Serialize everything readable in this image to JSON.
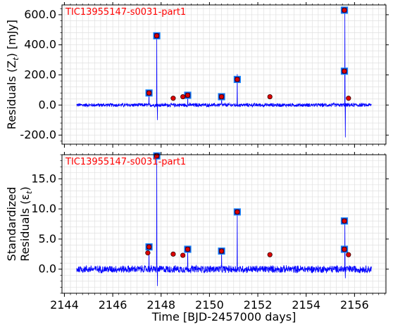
{
  "figure": {
    "xlabel": "Time [BJD-2457000 days]"
  },
  "colors": {
    "series": "#0000ff",
    "square_fill": "#2222aa",
    "square_edge": "#1a8cff",
    "dot_fill": "#dd0000",
    "dot_edge": "#330000",
    "title_text": "#ff0000",
    "grid": "#e0e0e0",
    "axes": "#000000"
  },
  "chart_data": [
    {
      "type": "line",
      "title": "TIC13955147-s0031-part1",
      "ylabel_lines": [
        "Residuals (Z",
        "t",
        ") [mJy]"
      ],
      "ylim": [
        -260,
        665
      ],
      "xlim": [
        2143.9,
        2157.3
      ],
      "yticks": [
        -200,
        0,
        200,
        400,
        600
      ],
      "ytick_labels": [
        "-200.0",
        "0.0",
        "200.0",
        "400.0",
        "600.0"
      ],
      "noise_amplitude": 14,
      "baseline": 0,
      "x_start": 2144.5,
      "x_end": 2156.7,
      "spikes": [
        {
          "x": 2147.5,
          "y": 80
        },
        {
          "x": 2147.82,
          "y": 460
        },
        {
          "x": 2147.85,
          "y": -100
        },
        {
          "x": 2149.1,
          "y": 65
        },
        {
          "x": 2150.5,
          "y": 55
        },
        {
          "x": 2151.15,
          "y": 205
        },
        {
          "x": 2155.6,
          "y": 630
        },
        {
          "x": 2155.62,
          "y": -215
        }
      ],
      "flagged_squares": [
        {
          "x": 2147.5,
          "y": 80
        },
        {
          "x": 2147.82,
          "y": 460
        },
        {
          "x": 2149.1,
          "y": 65
        },
        {
          "x": 2150.5,
          "y": 55
        },
        {
          "x": 2151.15,
          "y": 170
        },
        {
          "x": 2155.58,
          "y": 630
        },
        {
          "x": 2155.58,
          "y": 225
        }
      ],
      "flagged_dots": [
        {
          "x": 2147.5,
          "y": 80
        },
        {
          "x": 2147.82,
          "y": 460
        },
        {
          "x": 2148.5,
          "y": 45
        },
        {
          "x": 2148.9,
          "y": 55
        },
        {
          "x": 2149.1,
          "y": 65
        },
        {
          "x": 2150.5,
          "y": 55
        },
        {
          "x": 2151.15,
          "y": 170
        },
        {
          "x": 2152.5,
          "y": 55
        },
        {
          "x": 2155.58,
          "y": 630
        },
        {
          "x": 2155.58,
          "y": 225
        },
        {
          "x": 2155.75,
          "y": 45
        }
      ]
    },
    {
      "type": "line",
      "title": "TIC13955147-s0031-part1",
      "ylabel_lines": [
        "Standardized",
        "Residuals (ε",
        "t",
        ")"
      ],
      "ylim": [
        -4.0,
        19.0
      ],
      "xlim": [
        2143.9,
        2157.3
      ],
      "yticks": [
        0,
        5,
        10,
        15
      ],
      "ytick_labels": [
        "0.0",
        "5.0",
        "10.0",
        "15.0"
      ],
      "noise_amplitude": 0.7,
      "baseline": 0,
      "x_start": 2144.5,
      "x_end": 2156.7,
      "spikes": [
        {
          "x": 2147.5,
          "y": 3.7
        },
        {
          "x": 2147.82,
          "y": 18.8
        },
        {
          "x": 2147.85,
          "y": -2.8
        },
        {
          "x": 2149.1,
          "y": 3.3
        },
        {
          "x": 2150.5,
          "y": 3.0
        },
        {
          "x": 2151.15,
          "y": 9.5
        },
        {
          "x": 2155.6,
          "y": 8.0
        },
        {
          "x": 2155.62,
          "y": -1.5
        }
      ],
      "flagged_squares": [
        {
          "x": 2147.5,
          "y": 3.7
        },
        {
          "x": 2147.82,
          "y": 18.8
        },
        {
          "x": 2149.1,
          "y": 3.3
        },
        {
          "x": 2150.5,
          "y": 3.0
        },
        {
          "x": 2151.15,
          "y": 9.5
        },
        {
          "x": 2155.58,
          "y": 8.0
        },
        {
          "x": 2155.58,
          "y": 3.3
        }
      ],
      "flagged_dots": [
        {
          "x": 2147.5,
          "y": 3.7
        },
        {
          "x": 2147.45,
          "y": 2.7
        },
        {
          "x": 2147.82,
          "y": 18.8
        },
        {
          "x": 2148.5,
          "y": 2.5
        },
        {
          "x": 2148.9,
          "y": 2.3
        },
        {
          "x": 2149.1,
          "y": 3.3
        },
        {
          "x": 2150.5,
          "y": 3.0
        },
        {
          "x": 2151.15,
          "y": 9.5
        },
        {
          "x": 2152.5,
          "y": 2.4
        },
        {
          "x": 2155.58,
          "y": 8.0
        },
        {
          "x": 2155.58,
          "y": 3.3
        },
        {
          "x": 2155.75,
          "y": 2.4
        }
      ]
    }
  ],
  "x_axis": {
    "xticks": [
      2144,
      2146,
      2148,
      2150,
      2152,
      2154,
      2156
    ],
    "xtick_labels": [
      "2144",
      "2146",
      "2148",
      "2150",
      "2152",
      "2154",
      "2156"
    ]
  }
}
